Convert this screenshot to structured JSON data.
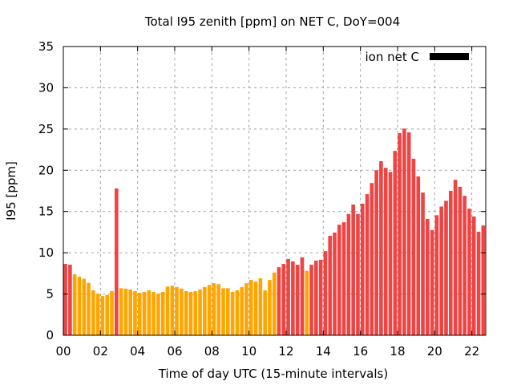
{
  "chart_data": {
    "type": "bar",
    "title": "Total I95 zenith [ppm] on NET C, DoY=004",
    "xlabel": "Time of day UTC (15-minute intervals)",
    "ylabel": "I95 [ppm]",
    "ylim": [
      0,
      35
    ],
    "xlim_hours": [
      0,
      22.75
    ],
    "interval_hours": 0.25,
    "yticks": [
      0,
      5,
      10,
      15,
      20,
      25,
      30,
      35
    ],
    "ytick_labels": [
      "0",
      "5",
      "10",
      "15",
      "20",
      "25",
      "30",
      "35"
    ],
    "xticks_hours": [
      0,
      2,
      4,
      6,
      8,
      10,
      12,
      14,
      16,
      18,
      20,
      22
    ],
    "xtick_labels": [
      "00",
      "02",
      "04",
      "06",
      "08",
      "10",
      "12",
      "14",
      "16",
      "18",
      "20",
      "22"
    ],
    "grid": true,
    "legend": {
      "placement": "top-right",
      "entries": [
        {
          "label": "ion net C",
          "color": "#000000"
        }
      ]
    },
    "colors": {
      "high": "#ee4444",
      "normal": "#ffa500",
      "grid": "#a0a0a0",
      "axis": "#000000"
    },
    "values": [
      8.65,
      8.55,
      7.4,
      7.1,
      6.85,
      6.35,
      5.45,
      5.05,
      4.75,
      4.9,
      5.35,
      17.8,
      5.7,
      5.65,
      5.55,
      5.35,
      5.15,
      5.25,
      5.45,
      5.25,
      5.05,
      5.25,
      5.9,
      6.0,
      5.85,
      5.65,
      5.35,
      5.25,
      5.35,
      5.55,
      5.85,
      6.1,
      6.3,
      6.2,
      5.7,
      5.7,
      5.25,
      5.45,
      5.85,
      6.3,
      6.7,
      6.5,
      6.9,
      5.45,
      6.7,
      7.6,
      8.25,
      8.65,
      9.25,
      8.95,
      8.55,
      9.45,
      7.8,
      8.55,
      9.05,
      9.15,
      10.2,
      12.05,
      12.45,
      13.4,
      13.7,
      14.7,
      15.85,
      14.7,
      15.95,
      17.1,
      18.45,
      20.0,
      21.1,
      20.3,
      19.8,
      22.35,
      24.5,
      25.05,
      24.6,
      21.4,
      19.25,
      17.3,
      14.1,
      12.75,
      14.55,
      15.6,
      16.3,
      17.5,
      18.85,
      18.0,
      16.9,
      15.35,
      14.4,
      12.55,
      13.3,
      12.05
    ],
    "bar_class": [
      "high",
      "high",
      "normal",
      "normal",
      "normal",
      "normal",
      "normal",
      "normal",
      "normal",
      "normal",
      "normal",
      "high",
      "normal",
      "normal",
      "normal",
      "normal",
      "normal",
      "normal",
      "normal",
      "normal",
      "normal",
      "normal",
      "normal",
      "normal",
      "normal",
      "normal",
      "normal",
      "normal",
      "normal",
      "normal",
      "normal",
      "normal",
      "normal",
      "normal",
      "normal",
      "normal",
      "normal",
      "normal",
      "normal",
      "normal",
      "normal",
      "normal",
      "normal",
      "normal",
      "normal",
      "normal",
      "high",
      "high",
      "high",
      "high",
      "high",
      "high",
      "normal",
      "high",
      "high",
      "high",
      "high",
      "high",
      "high",
      "high",
      "high",
      "high",
      "high",
      "high",
      "high",
      "high",
      "high",
      "high",
      "high",
      "high",
      "high",
      "high",
      "high",
      "high",
      "high",
      "high",
      "high",
      "high",
      "high",
      "high",
      "high",
      "high",
      "high",
      "high",
      "high",
      "high",
      "high",
      "high",
      "high",
      "high",
      "high",
      "high"
    ]
  }
}
